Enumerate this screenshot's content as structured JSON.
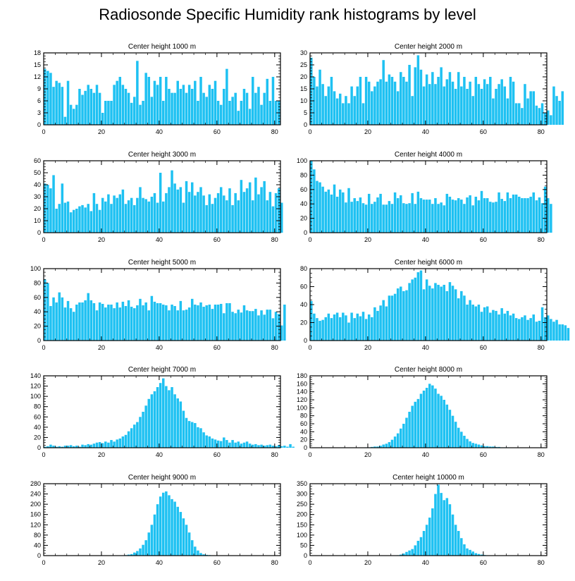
{
  "title": "Radiosonde Specific Humidity rank histograms by level",
  "bar_color": "#1ec1f2",
  "chart_data": [
    {
      "type": "bar",
      "title": "Center height 1000 m",
      "xlim": [
        0,
        82
      ],
      "ylim": [
        0,
        18
      ],
      "xticks": [
        0,
        20,
        40,
        60,
        80
      ],
      "yticks": [
        0,
        3,
        6,
        9,
        12,
        15,
        18
      ],
      "values": [
        14,
        13.5,
        13,
        9.5,
        11,
        10.5,
        9.5,
        2,
        11,
        5,
        4,
        5,
        9,
        7.5,
        8.5,
        10,
        9,
        8,
        10,
        8,
        3,
        6,
        6,
        6,
        10,
        11,
        12,
        10,
        9,
        8,
        5.5,
        7,
        16,
        5,
        6,
        13,
        12,
        7,
        11,
        10,
        12,
        6,
        12,
        9,
        8,
        8,
        11,
        9,
        10,
        8,
        10,
        9,
        11,
        6,
        12,
        8,
        7,
        10,
        9,
        11,
        6,
        5,
        9,
        14,
        6,
        7,
        8,
        3.5,
        6,
        9,
        8,
        4,
        12,
        8,
        9.5,
        5,
        8,
        11.5,
        6,
        12,
        6,
        6
      ]
    },
    {
      "type": "bar",
      "title": "Center height 2000 m",
      "xlim": [
        0,
        82
      ],
      "ylim": [
        0,
        30
      ],
      "xticks": [
        0,
        20,
        40,
        60,
        80
      ],
      "yticks": [
        0,
        5,
        10,
        15,
        20,
        25,
        30
      ],
      "values": [
        28,
        20,
        16,
        23,
        17,
        12,
        16,
        20,
        14,
        11,
        13,
        9,
        12,
        9,
        16,
        12,
        16,
        20,
        9,
        20,
        18,
        14,
        16,
        18,
        19,
        27,
        18,
        21,
        20,
        18,
        14,
        22,
        20,
        18,
        25,
        12,
        24,
        29,
        23,
        16,
        21,
        17,
        22,
        17,
        20,
        24,
        16,
        19,
        22,
        18,
        15,
        22,
        16,
        20,
        15,
        18,
        12,
        20,
        17,
        15,
        19,
        17,
        20,
        11,
        15,
        17,
        19,
        16,
        11,
        20,
        18,
        9,
        9,
        7,
        17,
        11,
        14,
        14,
        8,
        7,
        9,
        5,
        6,
        4,
        16,
        12,
        10,
        14
      ]
    },
    {
      "type": "bar",
      "title": "Center height 3000 m",
      "xlim": [
        0,
        82
      ],
      "ylim": [
        0,
        60
      ],
      "xticks": [
        0,
        20,
        40,
        60,
        80
      ],
      "yticks": [
        0,
        10,
        20,
        30,
        40,
        50,
        60
      ],
      "values": [
        41,
        40,
        37,
        48,
        20,
        24,
        41,
        25,
        26,
        17,
        19,
        20,
        22,
        23,
        21,
        24,
        18,
        33,
        24,
        19,
        29,
        26,
        32,
        24,
        31,
        29,
        32,
        36,
        24,
        27,
        29,
        23,
        29,
        38,
        29,
        28,
        26,
        30,
        33,
        25,
        50,
        26,
        33,
        38,
        52,
        41,
        36,
        38,
        25,
        43,
        34,
        42,
        31,
        34,
        38,
        31,
        23,
        32,
        24,
        29,
        33,
        38,
        31,
        27,
        37,
        23,
        33,
        27,
        44,
        34,
        37,
        42,
        27,
        46,
        32,
        38,
        43,
        27,
        34,
        22,
        33,
        37,
        25
      ]
    },
    {
      "type": "bar",
      "title": "Center height 4000 m",
      "xlim": [
        0,
        82
      ],
      "ylim": [
        0,
        100
      ],
      "xticks": [
        0,
        20,
        40,
        60,
        80
      ],
      "yticks": [
        0,
        20,
        40,
        60,
        80,
        100
      ],
      "values": [
        100,
        88,
        72,
        70,
        64,
        57,
        60,
        53,
        67,
        50,
        60,
        56,
        42,
        62,
        43,
        48,
        44,
        49,
        41,
        39,
        54,
        40,
        43,
        49,
        54,
        39,
        39,
        44,
        40,
        56,
        48,
        52,
        41,
        40,
        41,
        55,
        40,
        57,
        48,
        46,
        46,
        46,
        40,
        48,
        40,
        42,
        38,
        54,
        50,
        46,
        45,
        48,
        46,
        40,
        49,
        52,
        38,
        50,
        45,
        58,
        48,
        48,
        43,
        42,
        43,
        56,
        47,
        44,
        56,
        48,
        53,
        53,
        50,
        48,
        48,
        48,
        50,
        56,
        45,
        49,
        41,
        64,
        48,
        40
      ]
    },
    {
      "type": "bar",
      "title": "Center height 5000 m",
      "xlim": [
        0,
        82
      ],
      "ylim": [
        0,
        100
      ],
      "xticks": [
        0,
        20,
        40,
        60,
        80
      ],
      "yticks": [
        0,
        20,
        40,
        60,
        80,
        100
      ],
      "values": [
        85,
        80,
        48,
        60,
        53,
        67,
        60,
        46,
        55,
        45,
        40,
        50,
        53,
        53,
        56,
        66,
        56,
        52,
        42,
        53,
        51,
        46,
        50,
        50,
        45,
        53,
        46,
        54,
        48,
        56,
        47,
        45,
        49,
        58,
        49,
        53,
        42,
        62,
        54,
        52,
        52,
        50,
        49,
        42,
        50,
        48,
        42,
        55,
        42,
        43,
        46,
        58,
        50,
        49,
        53,
        47,
        49,
        50,
        44,
        50,
        50,
        51,
        38,
        52,
        52,
        40,
        38,
        43,
        39,
        49,
        42,
        41,
        41,
        44,
        35,
        42,
        36,
        43,
        43,
        31,
        40,
        37,
        21,
        50
      ]
    },
    {
      "type": "bar",
      "title": "Center height 6000 m",
      "xlim": [
        0,
        82
      ],
      "ylim": [
        0,
        80
      ],
      "xticks": [
        0,
        20,
        40,
        60,
        80
      ],
      "yticks": [
        0,
        20,
        40,
        60,
        80
      ],
      "values": [
        44,
        30,
        25,
        22,
        23,
        26,
        30,
        25,
        29,
        31,
        26,
        31,
        28,
        20,
        31,
        25,
        30,
        27,
        32,
        24,
        29,
        26,
        37,
        33,
        39,
        45,
        38,
        50,
        50,
        52,
        58,
        60,
        55,
        56,
        64,
        68,
        70,
        76,
        78,
        57,
        68,
        61,
        58,
        64,
        62,
        60,
        62,
        55,
        65,
        61,
        57,
        47,
        55,
        50,
        40,
        45,
        40,
        38,
        40,
        32,
        37,
        38,
        31,
        34,
        33,
        29,
        36,
        30,
        33,
        28,
        30,
        25,
        24,
        26,
        28,
        23,
        25,
        29,
        21,
        22,
        37,
        26,
        28,
        24,
        21,
        23,
        18,
        18,
        17,
        14
      ]
    },
    {
      "type": "bar",
      "title": "Center height 7000 m",
      "xlim": [
        0,
        82
      ],
      "ylim": [
        0,
        140
      ],
      "xticks": [
        0,
        20,
        40,
        60,
        80
      ],
      "yticks": [
        0,
        20,
        40,
        60,
        80,
        100,
        120,
        140
      ],
      "values": [
        2,
        3,
        6,
        4,
        2,
        3,
        2,
        4,
        4,
        5,
        3,
        4,
        2,
        6,
        5,
        7,
        6,
        8,
        10,
        11,
        9,
        12,
        10,
        15,
        12,
        16,
        18,
        22,
        25,
        32,
        38,
        45,
        50,
        60,
        70,
        82,
        95,
        104,
        110,
        118,
        126,
        135,
        120,
        112,
        118,
        104,
        96,
        90,
        72,
        58,
        52,
        50,
        48,
        40,
        38,
        30,
        24,
        22,
        18,
        16,
        14,
        13,
        20,
        15,
        10,
        15,
        10,
        12,
        8,
        10,
        12,
        8,
        6,
        7,
        5,
        6,
        4,
        5,
        6,
        4,
        3,
        5,
        3,
        4,
        2,
        7,
        2
      ]
    },
    {
      "type": "bar",
      "title": "Center height 8000 m",
      "xlim": [
        0,
        82
      ],
      "ylim": [
        0,
        180
      ],
      "xticks": [
        0,
        20,
        40,
        60,
        80
      ],
      "yticks": [
        0,
        20,
        40,
        60,
        80,
        100,
        120,
        140,
        160,
        180
      ],
      "values": [
        0,
        0,
        0,
        0,
        0,
        0,
        0,
        0,
        0,
        0,
        0,
        0,
        0,
        0,
        0,
        0,
        0,
        0,
        0,
        1,
        1,
        2,
        3,
        3,
        5,
        8,
        10,
        14,
        20,
        28,
        36,
        48,
        60,
        75,
        90,
        105,
        115,
        122,
        135,
        143,
        150,
        160,
        156,
        148,
        135,
        130,
        120,
        108,
        95,
        80,
        65,
        50,
        40,
        30,
        22,
        16,
        12,
        10,
        8,
        6,
        4,
        4,
        3,
        3,
        2,
        2,
        1,
        1,
        1,
        0,
        0,
        0,
        0,
        0,
        0,
        0,
        0,
        0,
        0,
        0,
        0,
        0
      ]
    },
    {
      "type": "bar",
      "title": "Center height 9000 m",
      "xlim": [
        0,
        82
      ],
      "ylim": [
        0,
        280
      ],
      "xticks": [
        0,
        20,
        40,
        60,
        80
      ],
      "yticks": [
        0,
        40,
        80,
        120,
        160,
        200,
        240,
        280
      ],
      "values": [
        0,
        0,
        0,
        0,
        0,
        0,
        0,
        0,
        0,
        0,
        0,
        0,
        0,
        0,
        0,
        0,
        0,
        0,
        0,
        0,
        0,
        0,
        0,
        0,
        0,
        0,
        0,
        1,
        2,
        4,
        6,
        12,
        18,
        28,
        42,
        60,
        90,
        120,
        160,
        200,
        230,
        245,
        250,
        235,
        220,
        210,
        190,
        170,
        145,
        120,
        90,
        60,
        35,
        20,
        10,
        5,
        3,
        2,
        1,
        0,
        0,
        0,
        0,
        0,
        0,
        0,
        0,
        0,
        0,
        0,
        0,
        0,
        0,
        0,
        0,
        0,
        0,
        0,
        0,
        0,
        0,
        0
      ]
    },
    {
      "type": "bar",
      "title": "Center height 10000 m",
      "xlim": [
        0,
        82
      ],
      "ylim": [
        0,
        350
      ],
      "xticks": [
        0,
        20,
        40,
        60,
        80
      ],
      "yticks": [
        0,
        50,
        100,
        150,
        200,
        250,
        300,
        350
      ],
      "values": [
        0,
        0,
        0,
        0,
        0,
        0,
        0,
        0,
        0,
        0,
        0,
        0,
        0,
        0,
        0,
        0,
        0,
        0,
        0,
        0,
        0,
        0,
        0,
        0,
        0,
        0,
        0,
        0,
        0,
        0,
        2,
        5,
        10,
        18,
        25,
        32,
        50,
        72,
        90,
        120,
        150,
        185,
        230,
        300,
        345,
        305,
        270,
        280,
        250,
        200,
        150,
        120,
        85,
        55,
        35,
        28,
        20,
        12,
        8,
        5,
        3,
        1,
        0,
        0,
        0,
        0,
        0,
        0,
        0,
        0,
        0,
        0,
        0,
        0,
        0,
        0,
        0,
        0,
        0,
        0,
        0,
        0
      ]
    }
  ]
}
